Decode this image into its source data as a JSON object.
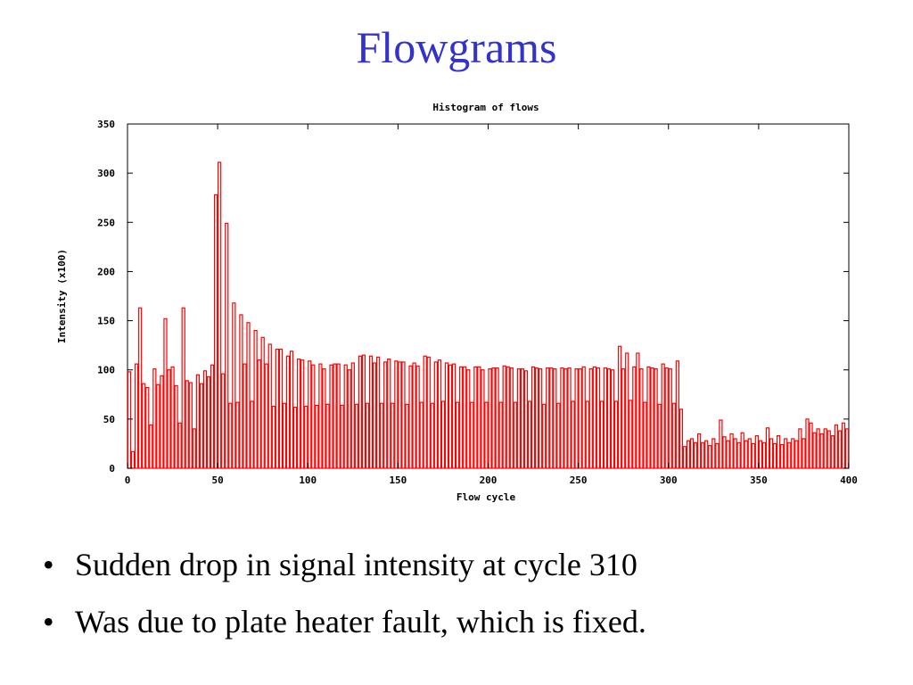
{
  "title": "Flowgrams",
  "bullets": [
    "Sudden drop in signal intensity at cycle 310",
    "Was due to plate heater fault, which is fixed."
  ],
  "chart_data": {
    "type": "histogram",
    "title": "Histogram of flows",
    "x_label": "Flow cycle",
    "y_label": "Intensity (x100)",
    "color": "#ff0000",
    "bins": [
      0,
      2,
      4,
      6,
      8,
      10,
      12,
      14,
      16,
      18,
      20,
      22,
      24,
      26,
      28,
      30,
      32,
      34,
      36,
      38,
      40,
      42,
      44,
      46,
      48,
      50,
      52,
      54,
      56,
      58,
      60,
      62,
      64,
      66,
      68,
      70,
      72,
      74,
      76,
      78,
      80,
      82,
      84,
      86,
      88,
      90,
      92,
      94,
      96,
      98,
      100,
      102,
      104,
      106,
      108,
      110,
      112,
      114,
      116,
      118,
      120,
      122,
      124,
      126,
      128,
      130,
      132,
      134,
      136,
      138,
      140,
      142,
      144,
      146,
      148,
      150,
      152,
      154,
      156,
      158,
      160,
      162,
      164,
      166,
      168,
      170,
      172,
      174,
      176,
      178,
      180,
      182,
      184,
      186,
      188,
      190,
      192,
      194,
      196,
      198,
      200,
      202,
      204,
      206,
      208,
      210,
      212,
      214,
      216,
      218,
      220,
      222,
      224,
      226,
      228,
      230,
      232,
      234,
      236,
      238,
      240,
      242,
      244,
      246,
      248,
      250,
      252,
      254,
      256,
      258,
      260,
      262,
      264,
      266,
      268,
      270,
      272,
      274,
      276,
      278,
      280,
      282,
      284,
      286,
      288,
      290,
      292,
      294,
      296,
      298,
      300,
      302,
      304,
      306,
      308,
      310,
      312,
      314,
      316,
      318,
      320,
      322,
      324,
      326,
      328,
      330,
      332,
      334,
      336,
      338,
      340,
      342,
      344,
      346,
      348,
      350,
      352,
      354,
      356,
      358,
      360,
      362,
      364,
      366,
      368,
      370,
      372,
      374,
      376,
      378,
      380,
      382,
      384,
      386,
      388,
      390,
      392,
      394,
      396,
      398,
      400
    ],
    "values": [
      98,
      17,
      106,
      163,
      86,
      82,
      44,
      101,
      85,
      94,
      152,
      100,
      103,
      84,
      46,
      163,
      89,
      87,
      40,
      95,
      86,
      99,
      93,
      105,
      278,
      311,
      96,
      249,
      66,
      168,
      67,
      156,
      106,
      148,
      68,
      140,
      110,
      133,
      106,
      126,
      63,
      121,
      121,
      66,
      114,
      119,
      62,
      111,
      110,
      63,
      109,
      105,
      64,
      106,
      101,
      65,
      105,
      106,
      106,
      64,
      105,
      100,
      107,
      65,
      114,
      115,
      66,
      114,
      107,
      113,
      66,
      108,
      111,
      66,
      109,
      108,
      108,
      65,
      104,
      107,
      104,
      67,
      114,
      113,
      66,
      108,
      110,
      68,
      107,
      105,
      106,
      67,
      103,
      103,
      100,
      67,
      103,
      103,
      100,
      67,
      101,
      102,
      102,
      67,
      104,
      103,
      102,
      67,
      101,
      101,
      99,
      68,
      103,
      102,
      101,
      65,
      102,
      102,
      101,
      66,
      102,
      101,
      102,
      68,
      101,
      101,
      103,
      68,
      101,
      103,
      102,
      68,
      102,
      101,
      100,
      68,
      124,
      101,
      117,
      69,
      103,
      117,
      101,
      67,
      103,
      102,
      101,
      65,
      106,
      102,
      101,
      66,
      109,
      60,
      22,
      28,
      30,
      26,
      35,
      26,
      28,
      23,
      30,
      25,
      49,
      32,
      28,
      35,
      30,
      26,
      36,
      28,
      30,
      25,
      33,
      28,
      26,
      41,
      30,
      25,
      33,
      24,
      30,
      26,
      30,
      28,
      40,
      30,
      50,
      46,
      36,
      40,
      35,
      40,
      38,
      33,
      44,
      38,
      46,
      40
    ],
    "xlim": [
      0,
      400
    ],
    "xticks": [
      0,
      50,
      100,
      150,
      200,
      250,
      300,
      350,
      400
    ],
    "ylim": [
      0,
      350
    ],
    "yticks": [
      0,
      50,
      100,
      150,
      200,
      250,
      300,
      350
    ]
  }
}
